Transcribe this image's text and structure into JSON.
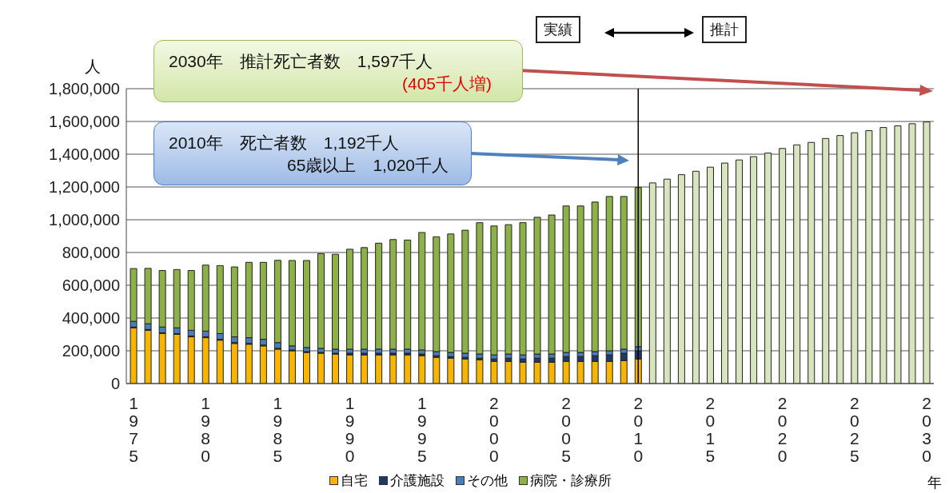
{
  "chart_data": {
    "type": "bar",
    "stacked": true,
    "categories": [
      "1975",
      null,
      null,
      null,
      null,
      "1980",
      null,
      null,
      null,
      null,
      "1985",
      null,
      null,
      null,
      null,
      "1990",
      null,
      null,
      null,
      null,
      "1995",
      null,
      null,
      null,
      null,
      "2000",
      null,
      null,
      null,
      null,
      "2005",
      null,
      null,
      null,
      null,
      "2010",
      null,
      null,
      null,
      null,
      "2015",
      null,
      null,
      null,
      null,
      "2020",
      null,
      null,
      null,
      null,
      "2025",
      null,
      null,
      null,
      null,
      "2030"
    ],
    "xlabel": "年",
    "ylabel": "人",
    "ylim": [
      0,
      1800000
    ],
    "yticks": [
      {
        "value": 0,
        "label": "0"
      },
      {
        "value": 200000,
        "label": "200,000"
      },
      {
        "value": 400000,
        "label": "400,000"
      },
      {
        "value": 600000,
        "label": "600,000"
      },
      {
        "value": 800000,
        "label": "800,000"
      },
      {
        "value": 1000000,
        "label": "1,000,000"
      },
      {
        "value": 1200000,
        "label": "1,200,000"
      },
      {
        "value": 1400000,
        "label": "1,400,000"
      },
      {
        "value": 1600000,
        "label": "1,600,000"
      },
      {
        "value": 1800000,
        "label": "1,800,000"
      }
    ],
    "grid": "y",
    "legend": "bottom",
    "series": [
      {
        "name": "自宅",
        "color": "#f7b500",
        "values": [
          340000,
          325000,
          305000,
          300000,
          285000,
          280000,
          265000,
          245000,
          240000,
          230000,
          210000,
          200000,
          190000,
          185000,
          180000,
          175000,
          175000,
          175000,
          175000,
          175000,
          170000,
          160000,
          155000,
          150000,
          145000,
          135000,
          135000,
          130000,
          130000,
          130000,
          135000,
          135000,
          135000,
          135000,
          140000,
          150000,
          null,
          null,
          null,
          null,
          null,
          null,
          null,
          null,
          null,
          null,
          null,
          null,
          null,
          null,
          null,
          null,
          null,
          null,
          null,
          null
        ]
      },
      {
        "name": "介護施設",
        "color": "#1f3864",
        "values": [
          5000,
          5000,
          5000,
          5000,
          5000,
          5000,
          5000,
          5000,
          5000,
          5000,
          5000,
          5000,
          5000,
          5000,
          5000,
          10000,
          10000,
          10000,
          10000,
          10000,
          10000,
          10000,
          10000,
          10000,
          10000,
          15000,
          20000,
          20000,
          25000,
          25000,
          30000,
          30000,
          35000,
          40000,
          45000,
          50000,
          null,
          null,
          null,
          null,
          null,
          null,
          null,
          null,
          null,
          null,
          null,
          null,
          null,
          null,
          null,
          null,
          null,
          null,
          null,
          null
        ]
      },
      {
        "name": "その他",
        "color": "#4a7ebb",
        "values": [
          35000,
          35000,
          35000,
          35000,
          35000,
          35000,
          35000,
          35000,
          35000,
          35000,
          35000,
          25000,
          25000,
          25000,
          25000,
          25000,
          25000,
          25000,
          25000,
          25000,
          25000,
          25000,
          25000,
          25000,
          25000,
          25000,
          25000,
          25000,
          25000,
          25000,
          25000,
          25000,
          25000,
          25000,
          25000,
          25000,
          null,
          null,
          null,
          null,
          null,
          null,
          null,
          null,
          null,
          null,
          null,
          null,
          null,
          null,
          null,
          null,
          null,
          null,
          null,
          null
        ]
      },
      {
        "name": "病院・診療所",
        "color": "#8db048",
        "values": [
          322000,
          338000,
          345000,
          356000,
          365000,
          403000,
          415000,
          427000,
          460000,
          470000,
          502000,
          521000,
          531000,
          578000,
          579000,
          610000,
          620000,
          647000,
          669000,
          666000,
          717000,
          701000,
          723000,
          751000,
          802000,
          787000,
          790000,
          807000,
          835000,
          849000,
          894000,
          894000,
          913000,
          942000,
          932000,
          972000,
          null,
          null,
          null,
          null,
          null,
          null,
          null,
          null,
          null,
          null,
          null,
          null,
          null,
          null,
          null,
          null,
          null,
          null,
          null,
          null
        ]
      },
      {
        "color": "#d7e4bd",
        "values": [
          null,
          null,
          null,
          null,
          null,
          null,
          null,
          null,
          null,
          null,
          null,
          null,
          null,
          null,
          null,
          null,
          null,
          null,
          null,
          null,
          null,
          null,
          null,
          null,
          null,
          null,
          null,
          null,
          null,
          null,
          null,
          null,
          null,
          null,
          null,
          null,
          1225000,
          1248000,
          1275000,
          1296000,
          1321000,
          1346000,
          1365000,
          1385000,
          1407000,
          1435000,
          1457000,
          1472000,
          1496000,
          1514000,
          1531000,
          1544000,
          1563000,
          1573000,
          1586000,
          1597000
        ]
      }
    ],
    "ref_lines": [
      {
        "axis": "x",
        "value": "2010",
        "color": "#000000"
      }
    ],
    "annotations": [
      "実績",
      "推計",
      "2030年　推計死亡者数　1,597千人",
      "(405千人増)",
      "2010年　死亡者数　1,192千人",
      "65歳以上　1,020千人"
    ]
  }
}
